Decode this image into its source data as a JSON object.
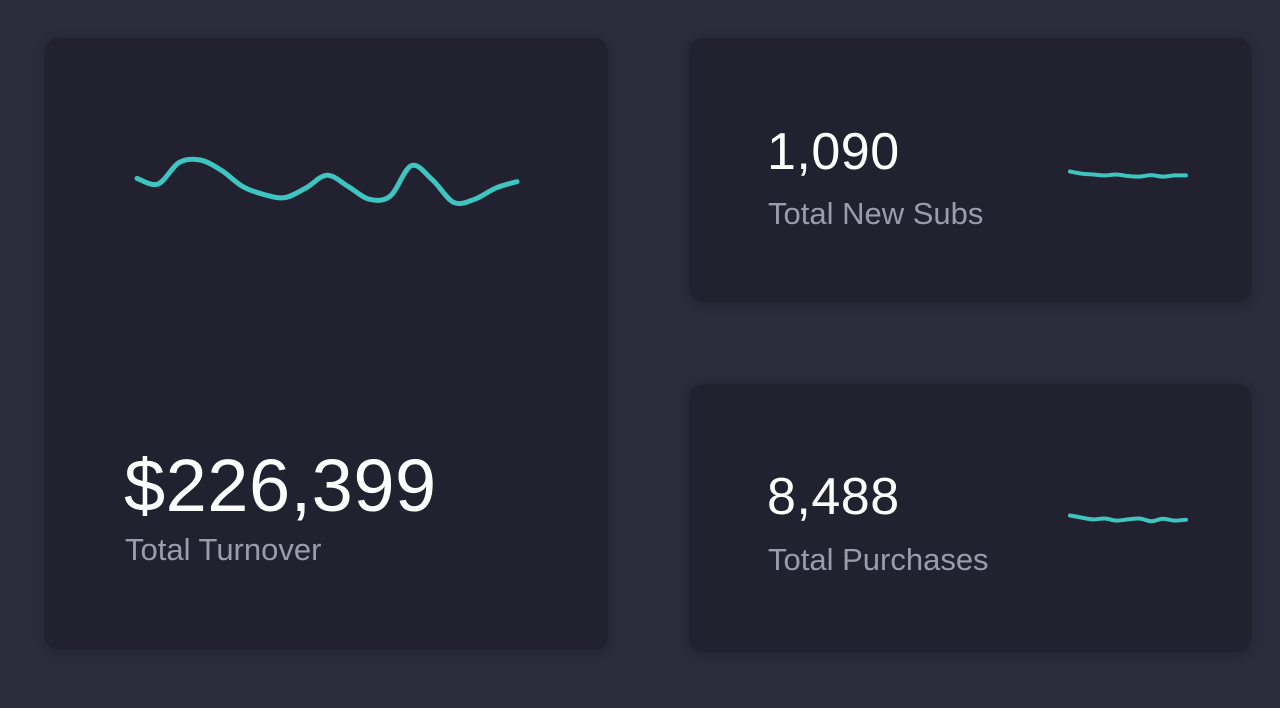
{
  "accent_color": "#3fc5bf",
  "cards": {
    "turnover": {
      "value": "$226,399",
      "label": "Total Turnover",
      "sparkline": [
        0.62,
        0.55,
        0.82,
        0.85,
        0.72,
        0.52,
        0.42,
        0.38,
        0.5,
        0.66,
        0.52,
        0.36,
        0.4,
        0.78,
        0.6,
        0.32,
        0.36,
        0.5,
        0.58
      ]
    },
    "new_subs": {
      "value": "1,090",
      "label": "Total New Subs",
      "sparkline": [
        0.55,
        0.48,
        0.45,
        0.42,
        0.45,
        0.4,
        0.38,
        0.43,
        0.38,
        0.42,
        0.42
      ]
    },
    "purchases": {
      "value": "8,488",
      "label": "Total Purchases",
      "sparkline": [
        0.55,
        0.48,
        0.42,
        0.45,
        0.38,
        0.42,
        0.45,
        0.36,
        0.44,
        0.38,
        0.41
      ]
    }
  }
}
